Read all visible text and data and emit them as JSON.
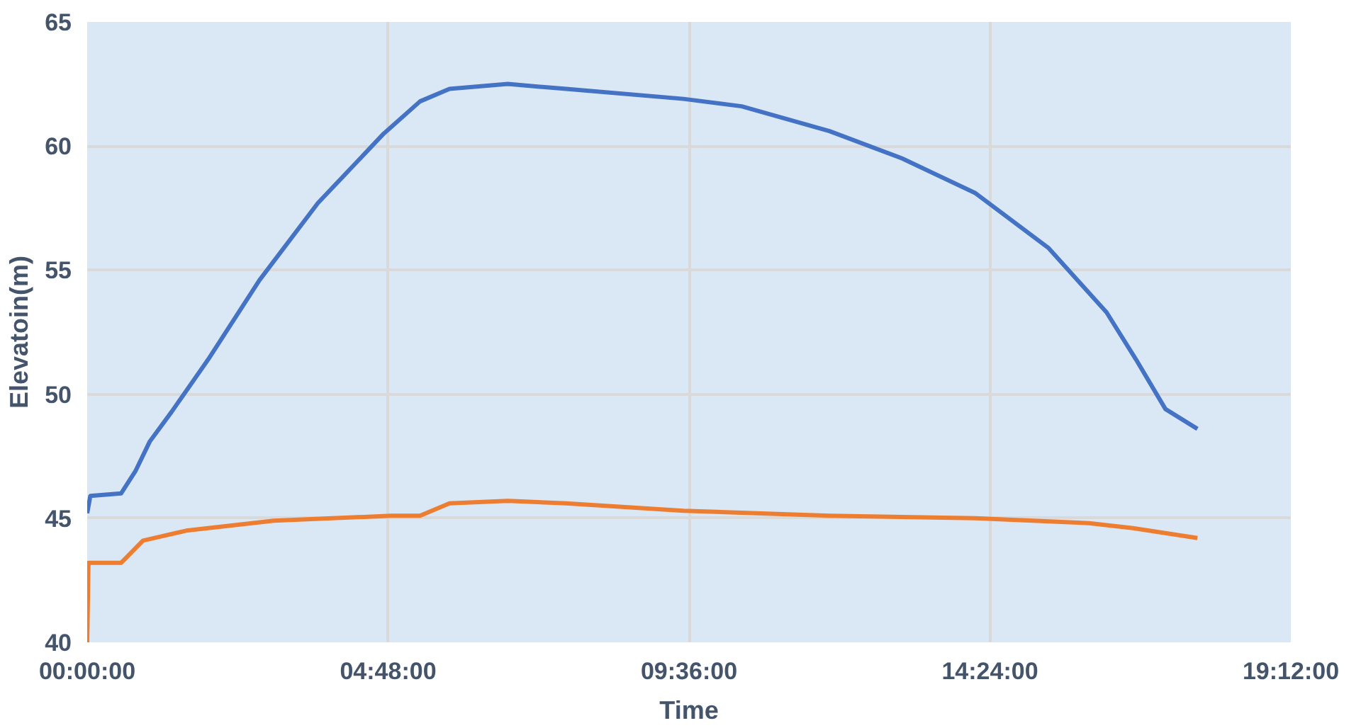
{
  "chart_data": {
    "type": "line",
    "xlabel": "Time",
    "ylabel": "Elevatoin(m)",
    "xlim": [
      0,
      19.2
    ],
    "ylim": [
      40,
      65
    ],
    "xticks": [
      {
        "value": 0,
        "label": "00:00:00"
      },
      {
        "value": 4.8,
        "label": "04:48:00"
      },
      {
        "value": 9.6,
        "label": "09:36:00"
      },
      {
        "value": 14.4,
        "label": "14:24:00"
      },
      {
        "value": 19.2,
        "label": "19:12:00"
      }
    ],
    "yticks": [
      40,
      45,
      50,
      55,
      60,
      65
    ],
    "grid": true,
    "marker": "none",
    "line_style": "solid",
    "series": [
      {
        "color": "#4472c4",
        "x": [
          0,
          0.05,
          0.54,
          0.77,
          1.0,
          1.35,
          1.93,
          2.75,
          3.68,
          4.73,
          5.31,
          5.78,
          6.71,
          7.64,
          9.51,
          10.44,
          11.84,
          13.0,
          14.17,
          15.33,
          16.26,
          16.73,
          17.2,
          17.71
        ],
        "values": [
          45.2,
          45.9,
          46.0,
          46.9,
          48.1,
          49.3,
          51.4,
          54.6,
          57.7,
          60.5,
          61.8,
          62.3,
          62.5,
          62.3,
          61.9,
          61.6,
          60.6,
          59.5,
          58.1,
          55.9,
          53.3,
          51.4,
          49.4,
          48.6
        ]
      },
      {
        "color": "#ed7d31",
        "x": [
          0,
          0.02,
          0.54,
          0.89,
          1.58,
          2.98,
          4.85,
          5.31,
          5.78,
          6.71,
          7.64,
          9.51,
          11.84,
          14.17,
          15.98,
          16.68,
          17.71
        ],
        "values": [
          40,
          43.2,
          43.2,
          44.1,
          44.5,
          44.9,
          45.1,
          45.1,
          45.6,
          45.7,
          45.6,
          45.3,
          45.1,
          45.0,
          44.8,
          44.6,
          44.2
        ]
      }
    ]
  }
}
